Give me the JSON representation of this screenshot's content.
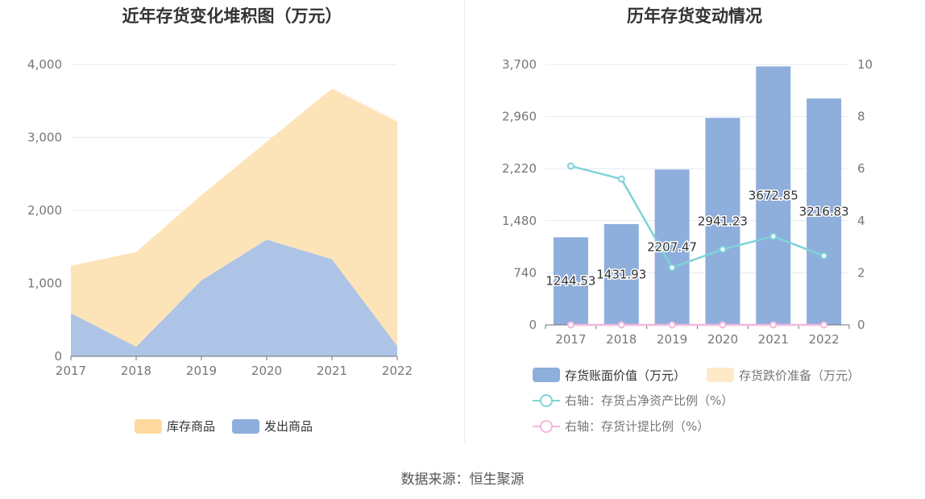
{
  "source": "数据来源：恒生聚源",
  "chart_data": [
    {
      "type": "area",
      "stacked": true,
      "title": "近年存货变化堆积图（万元）",
      "categories": [
        "2017",
        "2018",
        "2019",
        "2020",
        "2021",
        "2022"
      ],
      "ylim": [
        0,
        4000
      ],
      "yticks": [
        "0",
        "1,000",
        "2,000",
        "3,000",
        "4,000"
      ],
      "ytick_values": [
        0,
        1000,
        2000,
        3000,
        4000
      ],
      "grid": true,
      "legend_position": "bottom",
      "series": [
        {
          "name": "发出商品",
          "color": "#aec4e6",
          "legend_color": "#8eaedc",
          "values": [
            590,
            130,
            1040,
            1600,
            1330,
            140
          ]
        },
        {
          "name": "库存商品",
          "color": "#fde4b8",
          "legend_color": "#fdd9a0",
          "values": [
            650,
            1300,
            1170,
            1340,
            2340,
            3080
          ]
        }
      ]
    },
    {
      "type": "bar",
      "title": "历年存货变动情况",
      "categories": [
        "2017",
        "2018",
        "2019",
        "2020",
        "2021",
        "2022"
      ],
      "ylim": [
        0,
        3700
      ],
      "yticks": [
        "0",
        "740",
        "1,480",
        "2,220",
        "2,960",
        "3,700"
      ],
      "ytick_values": [
        0,
        740,
        1480,
        2220,
        2960,
        3700
      ],
      "y2lim": [
        0,
        10
      ],
      "y2ticks": [
        "0",
        "2",
        "4",
        "6",
        "8",
        "10"
      ],
      "y2tick_values": [
        0,
        2,
        4,
        6,
        8,
        10
      ],
      "grid": true,
      "legend_position": "bottom",
      "series": [
        {
          "name": "存货账面价值（万元）",
          "kind": "bar",
          "axis": "left",
          "color": "#8eaedc",
          "values": [
            1244.53,
            1431.93,
            2207.47,
            2941.23,
            3672.85,
            3216.83
          ],
          "labels": [
            "1244.53",
            "1431.93",
            "2207.47",
            "2941.23",
            "3672.85",
            "3216.83"
          ]
        },
        {
          "name": "存货跌价准备（万元）",
          "kind": "bar",
          "axis": "left",
          "color": "#fde9c8",
          "values": [
            0,
            0,
            0,
            0,
            0,
            0
          ]
        },
        {
          "name": "右轴：存货占净资产比例（%）",
          "kind": "line",
          "axis": "right",
          "color": "#7fd3d8",
          "values": [
            6.1,
            5.6,
            2.2,
            2.9,
            3.4,
            2.65
          ]
        },
        {
          "name": "右轴：存货计提比例（%）",
          "kind": "line",
          "axis": "right",
          "color": "#f2b8dc",
          "values": [
            0,
            0,
            0,
            0,
            0,
            0
          ]
        }
      ]
    }
  ]
}
